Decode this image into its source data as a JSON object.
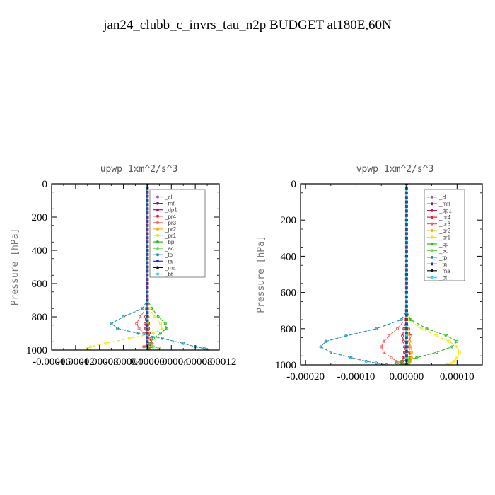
{
  "figure_title": "jan24_clubb_c_invrs_tau_n2p  BUDGET at180E,60N",
  "legend_entries": [
    "_cl",
    "_mfl",
    "_dp1",
    "_pr4",
    "_pr3",
    "_pr2",
    "_pr1",
    "_bp",
    "_ac",
    "_tp",
    "_ta",
    "_ma",
    "_bt"
  ],
  "series_colors": [
    "#9b59d0",
    "#7a1f8f",
    "#c0134b",
    "#e8232f",
    "#ff5a5a",
    "#ffb000",
    "#f2e600",
    "#22bb22",
    "#66dd44",
    "#1f8fb8",
    "#2b2bdc",
    "#111111",
    "#22dddd"
  ],
  "chart_data": [
    {
      "type": "line",
      "title": "upwp   1xm^2/s^3",
      "ylabel": "Pressure  [hPa]",
      "ylim": [
        1000,
        0
      ],
      "xlim": [
        -0.00016,
        0.00012
      ],
      "y_ticks": [
        0,
        200,
        400,
        600,
        800,
        1000
      ],
      "y_tick_labels": [
        "0",
        "200",
        "400",
        "600",
        "800",
        "1000"
      ],
      "x_ticks": [
        -0.00016,
        -0.00012,
        -8e-05,
        -4e-05,
        0,
        4e-05,
        8e-05,
        0.00012
      ],
      "x_tick_labels": [
        "-0.00016",
        "-0.00012",
        "-0.00008",
        "-0.00004",
        "0.00000",
        "0.00004",
        "0.00008",
        "0.00012"
      ],
      "y": [
        0,
        100,
        200,
        300,
        400,
        500,
        600,
        700,
        750,
        800,
        840,
        870,
        900,
        930,
        960,
        980,
        990,
        1000
      ],
      "series": [
        {
          "name": "_cl",
          "values": [
            0,
            0,
            0,
            0,
            0,
            0,
            0,
            0,
            0,
            0,
            0,
            0,
            0,
            0,
            0,
            0,
            0,
            0
          ]
        },
        {
          "name": "_mfl",
          "values": [
            0,
            0,
            0,
            0,
            0,
            0,
            0,
            0,
            0,
            0,
            0,
            0,
            0,
            0,
            0,
            0,
            0,
            0
          ]
        },
        {
          "name": "_dp1",
          "values": [
            0,
            0,
            0,
            0,
            0,
            0,
            0,
            0,
            0,
            1e-06,
            2e-06,
            2e-06,
            3e-06,
            4e-06,
            6e-06,
            4e-06,
            2e-06,
            0
          ]
        },
        {
          "name": "_pr4",
          "values": [
            0,
            0,
            0,
            0,
            0,
            0,
            0,
            0,
            0,
            -3e-06,
            -4e-06,
            -3e-06,
            -2e-06,
            4e-06,
            8e-06,
            -6e-06,
            2e-06,
            0
          ]
        },
        {
          "name": "_pr3",
          "values": [
            0,
            0,
            0,
            0,
            0,
            0,
            0,
            0,
            -2e-06,
            -1.2e-05,
            -1.8e-05,
            -1.4e-05,
            -6e-06,
            6e-06,
            8e-06,
            -3e-06,
            4e-06,
            0
          ]
        },
        {
          "name": "_pr2",
          "values": [
            0,
            0,
            0,
            0,
            0,
            0,
            0,
            0,
            0,
            1e-06,
            1e-06,
            1e-06,
            2e-06,
            2e-06,
            1e-06,
            1e-06,
            0,
            0
          ]
        },
        {
          "name": "_pr1",
          "values": [
            0,
            0,
            0,
            0,
            0,
            0,
            0,
            0,
            4e-06,
            1.2e-05,
            2.2e-05,
            2.5e-05,
            1e-05,
            -3e-05,
            -7e-05,
            -9.5e-05,
            -0.0001,
            -9.5e-05
          ]
        },
        {
          "name": "_bp",
          "values": [
            0,
            0,
            0,
            0,
            0,
            0,
            0,
            0,
            8e-06,
            1.8e-05,
            3e-05,
            3.2e-05,
            2.2e-05,
            1e-05,
            4e-06,
            8e-06,
            2e-06,
            0
          ]
        },
        {
          "name": "_ac",
          "values": [
            0,
            0,
            0,
            0,
            0,
            0,
            0,
            0,
            0,
            0,
            0,
            0,
            0,
            0,
            0,
            1e-05,
            2e-05,
            1.2e-05
          ]
        },
        {
          "name": "_tp",
          "values": [
            0,
            0,
            0,
            0,
            0,
            0,
            0,
            0,
            -8e-06,
            -4e-05,
            -6e-05,
            -5e-05,
            -1.5e-05,
            2.5e-05,
            6e-05,
            8e-05,
            9.5e-05,
            0.0001
          ]
        },
        {
          "name": "_ta",
          "values": [
            0,
            0,
            0,
            0,
            0,
            0,
            0,
            0,
            0,
            0,
            0,
            0,
            0,
            0,
            0,
            0,
            0,
            0
          ]
        },
        {
          "name": "_ma",
          "values": [
            0,
            0,
            0,
            0,
            0,
            0,
            0,
            0,
            0,
            0,
            0,
            0,
            0,
            0,
            0,
            0,
            0,
            0
          ]
        },
        {
          "name": "_bt",
          "values": [
            0,
            0,
            0,
            0,
            0,
            0,
            0,
            0,
            0,
            0,
            0,
            0,
            0,
            0,
            0,
            0,
            0,
            0
          ]
        }
      ]
    },
    {
      "type": "line",
      "title": "vpwp   1xm^2/s^3",
      "ylabel": "Pressure  [hPa]",
      "ylim": [
        1000,
        0
      ],
      "xlim": [
        -0.00021,
        0.00015
      ],
      "y_ticks": [
        0,
        200,
        400,
        600,
        800,
        1000
      ],
      "y_tick_labels": [
        "0",
        "200",
        "400",
        "600",
        "800",
        "1000"
      ],
      "x_ticks": [
        -0.0002,
        -0.0001,
        0,
        0.0001
      ],
      "x_tick_labels": [
        "-0.00020",
        "-0.00010",
        "0.00000",
        "0.00010"
      ],
      "y": [
        0,
        100,
        200,
        300,
        400,
        500,
        600,
        700,
        750,
        800,
        840,
        870,
        900,
        930,
        960,
        980,
        990,
        1000
      ],
      "series": [
        {
          "name": "_cl",
          "values": [
            0,
            0,
            0,
            0,
            0,
            0,
            0,
            0,
            0,
            0,
            0,
            0,
            0,
            0,
            0,
            0,
            0,
            0
          ]
        },
        {
          "name": "_mfl",
          "values": [
            0,
            0,
            0,
            0,
            0,
            0,
            0,
            0,
            0,
            0,
            0,
            0,
            0,
            0,
            0,
            0,
            0,
            0
          ]
        },
        {
          "name": "_dp1",
          "values": [
            0,
            0,
            0,
            0,
            0,
            0,
            0,
            0,
            0,
            -5e-06,
            -8e-06,
            -6e-06,
            -4e-06,
            -4e-06,
            -6e-06,
            -8e-06,
            -1e-05,
            -1.2e-05
          ]
        },
        {
          "name": "_pr4",
          "values": [
            0,
            0,
            0,
            0,
            0,
            0,
            0,
            0,
            0,
            4e-06,
            8e-06,
            6e-06,
            5e-06,
            6e-06,
            8e-06,
            6e-06,
            4e-06,
            0
          ]
        },
        {
          "name": "_pr3",
          "values": [
            0,
            0,
            0,
            0,
            0,
            0,
            0,
            0,
            -3e-06,
            -1.8e-05,
            -3.5e-05,
            -4.5e-05,
            -5e-05,
            -4.5e-05,
            -3e-05,
            -2e-05,
            -1e-05,
            -5e-06
          ]
        },
        {
          "name": "_pr2",
          "values": [
            0,
            0,
            0,
            0,
            0,
            0,
            0,
            0,
            0,
            2e-06,
            4e-06,
            6e-06,
            8e-06,
            1e-05,
            1e-05,
            8e-06,
            5e-06,
            2e-06
          ]
        },
        {
          "name": "_pr1",
          "values": [
            0,
            0,
            0,
            0,
            0,
            0,
            0,
            0,
            5e-06,
            3e-05,
            6e-05,
            8.5e-05,
            0.0001,
            0.000105,
            0.0001,
            9.5e-05,
            9e-05,
            8e-05
          ]
        },
        {
          "name": "_bp",
          "values": [
            0,
            0,
            0,
            0,
            0,
            0,
            0,
            0,
            8e-06,
            4e-05,
            8e-05,
            0.0001,
            9e-05,
            6e-05,
            2e-05,
            -1e-05,
            -2e-05,
            -5e-06
          ]
        },
        {
          "name": "_ac",
          "values": [
            0,
            0,
            0,
            0,
            0,
            0,
            0,
            0,
            0,
            0,
            0,
            0,
            0,
            0,
            2e-06,
            4e-06,
            2e-06,
            0
          ]
        },
        {
          "name": "_tp",
          "values": [
            0,
            0,
            0,
            0,
            0,
            0,
            0,
            0,
            -1e-05,
            -6e-05,
            -0.00012,
            -0.00016,
            -0.00017,
            -0.00015,
            -0.00011,
            -8e-05,
            -6e-05,
            -4e-05
          ]
        },
        {
          "name": "_ta",
          "values": [
            0,
            0,
            0,
            0,
            0,
            0,
            0,
            0,
            0,
            0,
            0,
            0,
            0,
            0,
            0,
            0,
            0,
            0
          ]
        },
        {
          "name": "_ma",
          "values": [
            0,
            0,
            0,
            0,
            0,
            0,
            0,
            0,
            0,
            0,
            0,
            0,
            0,
            0,
            0,
            0,
            0,
            0
          ]
        },
        {
          "name": "_bt",
          "values": [
            0,
            0,
            0,
            0,
            0,
            0,
            0,
            0,
            0,
            0,
            0,
            0,
            0,
            0,
            0,
            0,
            0,
            0
          ]
        }
      ]
    }
  ]
}
